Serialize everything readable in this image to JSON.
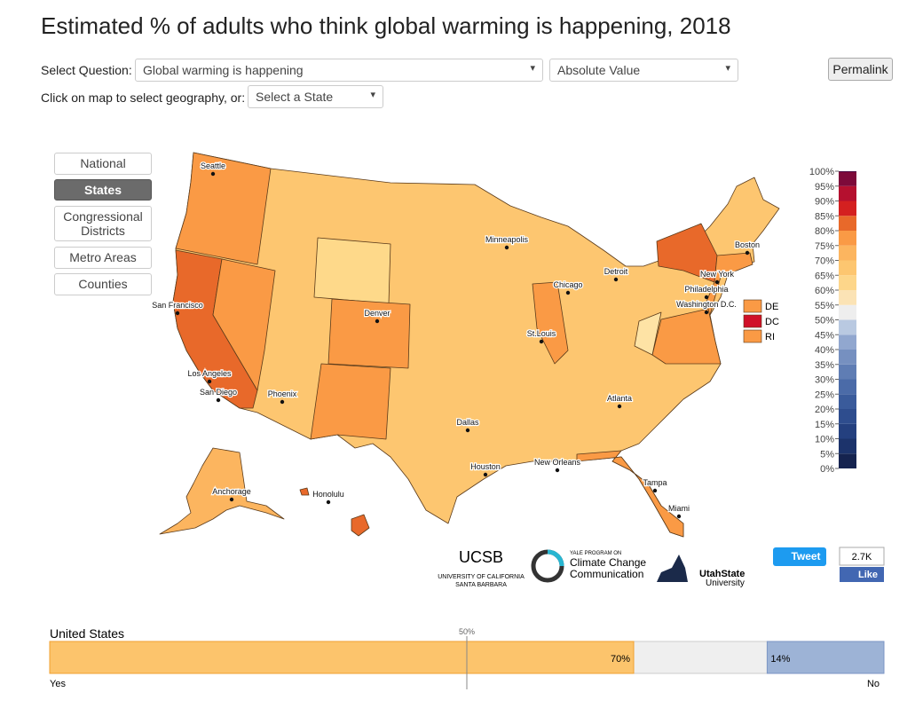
{
  "header": {
    "title": "Estimated % of adults who think global warming is happening, 2018"
  },
  "controls": {
    "question_label": "Select Question:",
    "question": "Global warming is happening",
    "mode": "Absolute Value",
    "permalink": "Permalink",
    "geo_label": "Click on map to select geography, or:",
    "state_select": "Select a State"
  },
  "geography_tabs": [
    "National",
    "States",
    "Congressional Districts",
    "Metro Areas",
    "Counties"
  ],
  "map": {
    "cities": [
      "Seattle",
      "San Francisco",
      "Los Angeles",
      "San Diego",
      "Phoenix",
      "Denver",
      "Dallas",
      "Houston",
      "Minneapolis",
      "Chicago",
      "Detroit",
      "St.Louis",
      "New Orleans",
      "Atlanta",
      "Tampa",
      "Miami",
      "Washington D.C.",
      "Philadelphia",
      "New York",
      "Boston",
      "Anchorage",
      "Honolulu"
    ],
    "small_states": [
      {
        "name": "DE",
        "color": "#fa9a45"
      },
      {
        "name": "DC",
        "color": "#d01028"
      },
      {
        "name": "RI",
        "color": "#fa9a45"
      }
    ]
  },
  "legend": {
    "ticks": [
      {
        "value": 0,
        "label": "0%"
      },
      {
        "value": 5,
        "label": "5%"
      },
      {
        "value": 10,
        "label": "10%"
      },
      {
        "value": 15,
        "label": "15%"
      },
      {
        "value": 20,
        "label": "20%"
      },
      {
        "value": 25,
        "label": "25%"
      },
      {
        "value": 30,
        "label": "30%"
      },
      {
        "value": 35,
        "label": "35%"
      },
      {
        "value": 40,
        "label": "40%"
      },
      {
        "value": 45,
        "label": "45%"
      },
      {
        "value": 50,
        "label": "50%"
      },
      {
        "value": 55,
        "label": "55%"
      },
      {
        "value": 60,
        "label": "60%"
      },
      {
        "value": 65,
        "label": "65%"
      },
      {
        "value": 70,
        "label": "70%"
      },
      {
        "value": 75,
        "label": "75%"
      },
      {
        "value": 80,
        "label": "80%"
      },
      {
        "value": 85,
        "label": "85%"
      },
      {
        "value": 90,
        "label": "90%"
      },
      {
        "value": 95,
        "label": "95%"
      },
      {
        "value": 100,
        "label": "100%"
      }
    ],
    "colors": [
      "#15234f",
      "#1c336b",
      "#24407f",
      "#2e4d8e",
      "#3a5b9b",
      "#4b6ba8",
      "#5f7db4",
      "#7690c0",
      "#91a7cf",
      "#b9c9e1",
      "#eeeeee",
      "#fbe3b5",
      "#fdd68a",
      "#fdc670",
      "#fcb55f",
      "#fa9a45",
      "#e8692a",
      "#d42020",
      "#b5102f",
      "#7d0a3a",
      "#4a0a40"
    ]
  },
  "logos": {
    "ucsb": "UCSB",
    "ucsb_sub1": "UNIVERSITY OF CALIFORNIA",
    "ucsb_sub2": "SANTA BARBARA",
    "yale_small": "YALE PROGRAM ON",
    "yale1": "Climate Change",
    "yale2": "Communication",
    "usu1": "UtahState",
    "usu2": "University"
  },
  "social": {
    "tweet": "Tweet",
    "count": "2.7K",
    "like": "Like"
  },
  "summary": {
    "geography": "United States",
    "midline": {
      "value": 50,
      "label": "50%"
    },
    "yes": {
      "value": 70,
      "label": "70%",
      "color": "#fcc46c"
    },
    "no": {
      "value": 14,
      "label": "14%",
      "color": "#9db3d6"
    },
    "yes_label": "Yes",
    "no_label": "No"
  }
}
